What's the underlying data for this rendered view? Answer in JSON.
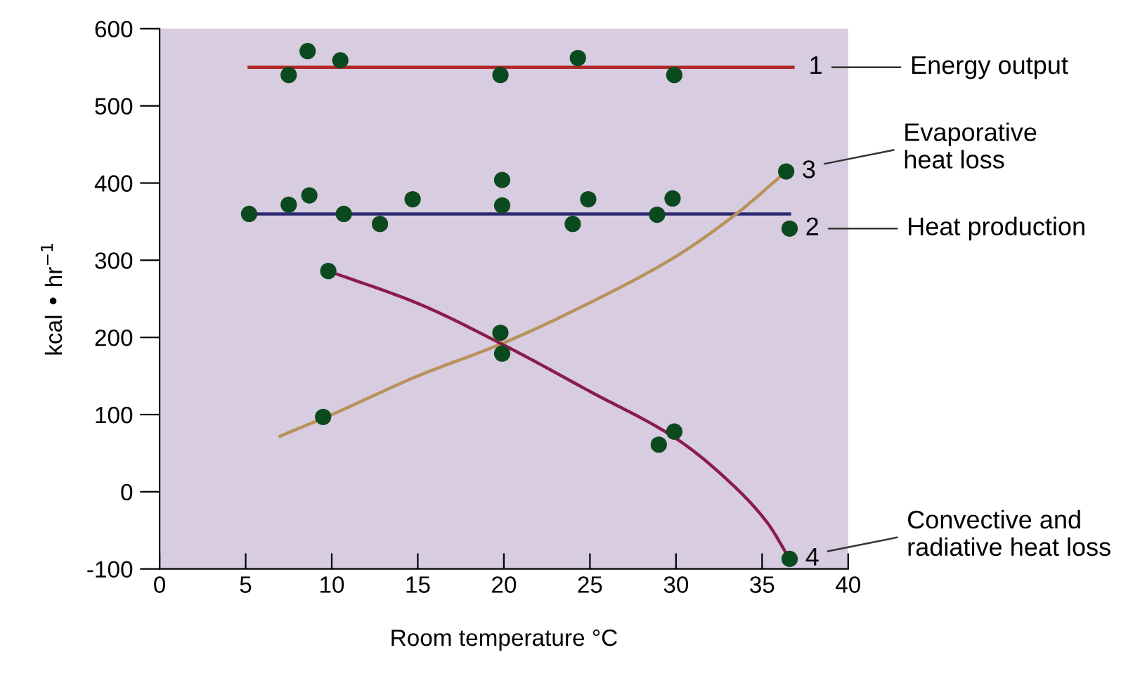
{
  "chart_data": {
    "type": "line",
    "xlabel": "Room temperature °C",
    "ylabel": "kcal • hr$^{−1}$",
    "xlim": [
      0,
      40
    ],
    "xticks": [
      0,
      5,
      10,
      15,
      20,
      25,
      30,
      35,
      40
    ],
    "ylim": [
      -100,
      600
    ],
    "yticks": [
      -100,
      0,
      100,
      200,
      300,
      400,
      500,
      600
    ],
    "grid": false,
    "legend": false,
    "series": [
      {
        "name": "Energy output",
        "color": "#b02828",
        "x": [
          5.2,
          36.8
        ],
        "values": [
          550,
          550
        ]
      },
      {
        "name": "Heat production",
        "color": "#2c2a72",
        "x": [
          5.2,
          36.6
        ],
        "values": [
          360,
          360
        ]
      },
      {
        "name": "Evaporative\nheat loss",
        "color": "#b8925a",
        "x": [
          7.0,
          10,
          15,
          20,
          25,
          30,
          33.5,
          36.4
        ],
        "values": [
          72,
          100,
          150,
          193,
          245,
          305,
          360,
          415
        ]
      },
      {
        "name": "Convective and\nradiative heat loss",
        "color": "#8a1c4c",
        "x": [
          9.8,
          15,
          20,
          25,
          30,
          33,
          35.3,
          36.6
        ],
        "values": [
          286,
          244,
          190,
          130,
          69,
          15,
          -40,
          -87
        ]
      },
      {
        "type": "scatter",
        "marker": "circle",
        "color": "#0b4a1e",
        "x": [
          7.5,
          8.6,
          10.5,
          19.8,
          24.3,
          29.9
        ],
        "values": [
          540,
          571,
          559,
          540,
          562,
          540
        ]
      },
      {
        "type": "scatter",
        "marker": "circle",
        "color": "#0b4a1e",
        "x": [
          5.2,
          7.5,
          8.7,
          10.7,
          12.8,
          14.7,
          19.9,
          19.9,
          24.0,
          24.9,
          28.9,
          29.8,
          36.6
        ],
        "values": [
          360,
          372,
          384,
          360,
          347,
          379,
          404,
          371,
          347,
          379,
          359,
          380,
          341
        ]
      },
      {
        "type": "scatter",
        "marker": "circle",
        "color": "#0b4a1e",
        "x": [
          9.5,
          19.8,
          36.4
        ],
        "values": [
          97,
          206,
          415
        ]
      },
      {
        "type": "scatter",
        "marker": "circle",
        "color": "#0b4a1e",
        "x": [
          9.8,
          19.9,
          29.0,
          29.9,
          36.6
        ],
        "values": [
          286,
          179,
          61,
          78,
          -87
        ]
      }
    ],
    "annotations": [
      {
        "text": "1",
        "x": 36.8,
        "y": 550
      },
      {
        "text": "2",
        "x": 36.6,
        "y": 341
      },
      {
        "text": "3",
        "x": 36.4,
        "y": 415
      },
      {
        "text": "4",
        "x": 36.6,
        "y": -87
      }
    ]
  }
}
